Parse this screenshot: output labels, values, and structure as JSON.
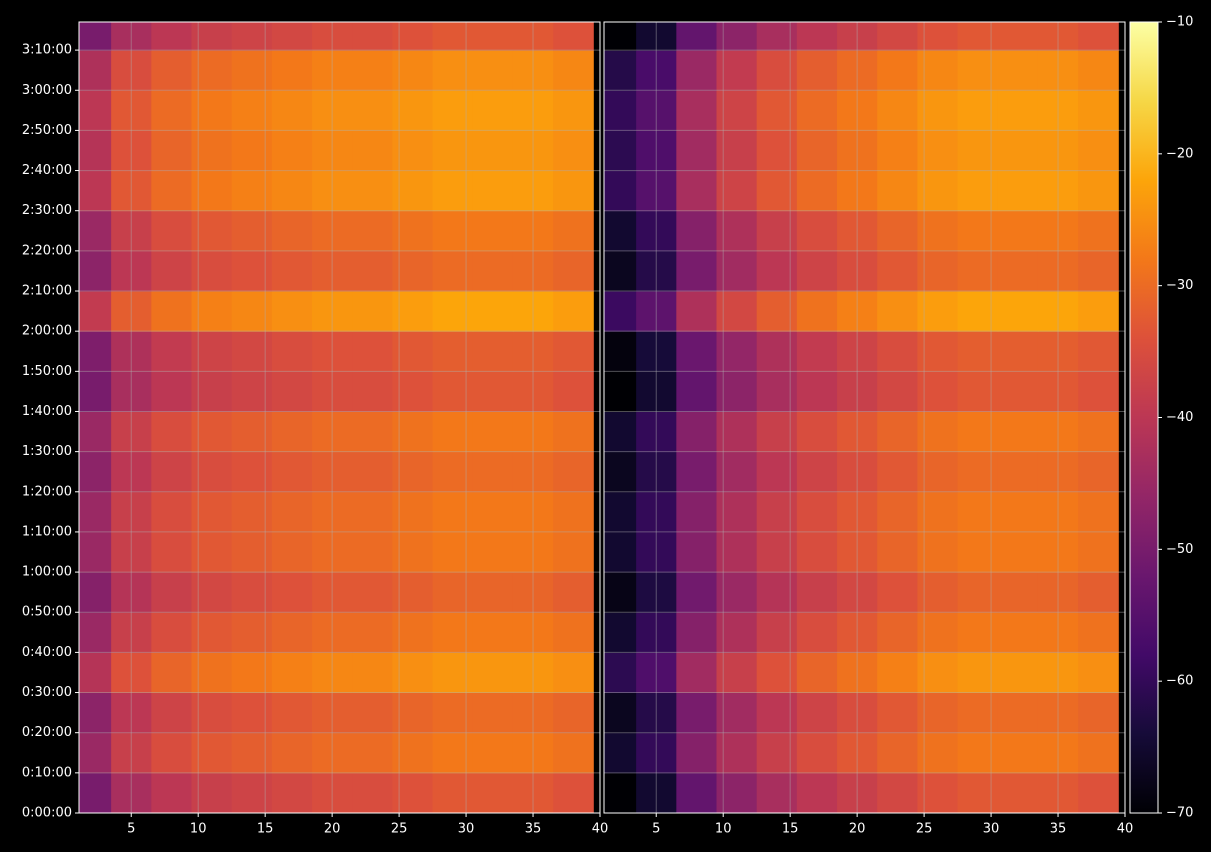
{
  "chart_data": [
    {
      "type": "heatmap",
      "cmap": "inferno",
      "grid": true,
      "x": [
        2,
        5,
        8,
        11,
        14,
        17,
        20,
        23,
        26,
        29,
        32,
        35,
        38
      ],
      "y": [
        300,
        900,
        1500,
        2100,
        2700,
        3300,
        3900,
        4500,
        5100,
        5700,
        6300,
        6900,
        7500,
        8100,
        8700,
        9300,
        9900,
        10500,
        11100,
        11700
      ],
      "values": [
        [
          -50,
          -43,
          -40,
          -38,
          -37,
          -36,
          -35,
          -35,
          -34,
          -33,
          -33,
          -33,
          -34
        ],
        [
          -45,
          -38,
          -35,
          -33,
          -32,
          -31,
          -30,
          -30,
          -29,
          -28,
          -28,
          -28,
          -29
        ],
        [
          -47,
          -40,
          -37,
          -35,
          -34,
          -33,
          -32,
          -32,
          -31,
          -30,
          -30,
          -30,
          -31
        ],
        [
          -41,
          -34,
          -31,
          -29,
          -28,
          -27,
          -26,
          -26,
          -25,
          -24,
          -24,
          -24,
          -25
        ],
        [
          -45,
          -38,
          -35,
          -33,
          -32,
          -31,
          -30,
          -30,
          -29,
          -28,
          -28,
          -28,
          -29
        ],
        [
          -48,
          -41,
          -38,
          -36,
          -35,
          -34,
          -33,
          -33,
          -32,
          -31,
          -31,
          -31,
          -32
        ],
        [
          -45,
          -38,
          -35,
          -33,
          -32,
          -31,
          -30,
          -30,
          -29,
          -28,
          -28,
          -28,
          -29
        ],
        [
          -45,
          -38,
          -35,
          -33,
          -32,
          -31,
          -30,
          -30,
          -29,
          -28,
          -28,
          -28,
          -29
        ],
        [
          -47,
          -40,
          -37,
          -35,
          -34,
          -33,
          -32,
          -32,
          -31,
          -30,
          -30,
          -30,
          -31
        ],
        [
          -45,
          -38,
          -35,
          -33,
          -32,
          -31,
          -30,
          -30,
          -29,
          -28,
          -28,
          -28,
          -29
        ],
        [
          -50,
          -43,
          -40,
          -38,
          -37,
          -36,
          -35,
          -35,
          -34,
          -33,
          -33,
          -33,
          -34
        ],
        [
          -49,
          -42,
          -39,
          -37,
          -36,
          -35,
          -34,
          -34,
          -33,
          -32,
          -32,
          -32,
          -33
        ],
        [
          -39,
          -32,
          -29,
          -27,
          -26,
          -25,
          -24,
          -24,
          -23,
          -22,
          -22,
          -22,
          -23
        ],
        [
          -47,
          -40,
          -37,
          -35,
          -34,
          -33,
          -32,
          -32,
          -31,
          -30,
          -30,
          -30,
          -31
        ],
        [
          -45,
          -38,
          -35,
          -33,
          -32,
          -31,
          -30,
          -30,
          -29,
          -28,
          -28,
          -28,
          -29
        ],
        [
          -40,
          -33,
          -30,
          -28,
          -27,
          -26,
          -25,
          -25,
          -24,
          -23,
          -23,
          -23,
          -24
        ],
        [
          -41,
          -34,
          -31,
          -29,
          -28,
          -27,
          -26,
          -26,
          -25,
          -24,
          -24,
          -24,
          -25
        ],
        [
          -40,
          -33,
          -30,
          -28,
          -27,
          -26,
          -25,
          -25,
          -24,
          -23,
          -23,
          -23,
          -24
        ],
        [
          -42,
          -35,
          -32,
          -30,
          -29,
          -28,
          -27,
          -27,
          -26,
          -25,
          -25,
          -25,
          -26
        ],
        [
          -50,
          -43,
          -40,
          -38,
          -37,
          -36,
          -35,
          -35,
          -34,
          -33,
          -33,
          -33,
          -34
        ]
      ],
      "xlim": [
        1.1,
        40
      ],
      "xticks": [
        5,
        10,
        15,
        20,
        25,
        30,
        35,
        40
      ],
      "ylim": [
        0,
        11820
      ],
      "yticks": [
        {
          "value": 0,
          "label": "0:00:00"
        },
        {
          "value": 600,
          "label": "0:10:00"
        },
        {
          "value": 1200,
          "label": "0:20:00"
        },
        {
          "value": 1800,
          "label": "0:30:00"
        },
        {
          "value": 2400,
          "label": "0:40:00"
        },
        {
          "value": 3000,
          "label": "0:50:00"
        },
        {
          "value": 3600,
          "label": "1:00:00"
        },
        {
          "value": 4200,
          "label": "1:10:00"
        },
        {
          "value": 4800,
          "label": "1:20:00"
        },
        {
          "value": 5400,
          "label": "1:30:00"
        },
        {
          "value": 6000,
          "label": "1:40:00"
        },
        {
          "value": 6600,
          "label": "1:50:00"
        },
        {
          "value": 7200,
          "label": "2:00:00"
        },
        {
          "value": 7800,
          "label": "2:10:00"
        },
        {
          "value": 8400,
          "label": "2:20:00"
        },
        {
          "value": 9000,
          "label": "2:30:00"
        },
        {
          "value": 9600,
          "label": "2:40:00"
        },
        {
          "value": 10200,
          "label": "2:50:00"
        },
        {
          "value": 10800,
          "label": "3:00:00"
        },
        {
          "value": 11400,
          "label": "3:10:00"
        }
      ]
    },
    {
      "type": "heatmap",
      "cmap": "inferno",
      "grid": true,
      "x": [
        2,
        5,
        8,
        11,
        14,
        17,
        20,
        23,
        26,
        29,
        32,
        35,
        38
      ],
      "y": [
        300,
        900,
        1500,
        2100,
        2700,
        3300,
        3900,
        4500,
        5100,
        5700,
        6300,
        6900,
        7500,
        8100,
        8700,
        9300,
        9900,
        10500,
        11100,
        11700
      ],
      "values": [
        [
          -70,
          -65,
          -53,
          -47,
          -43,
          -40,
          -38,
          -36,
          -34,
          -33,
          -33,
          -33,
          -34
        ],
        [
          -65,
          -60,
          -48,
          -42,
          -38,
          -35,
          -33,
          -31,
          -29,
          -28,
          -28,
          -28,
          -29
        ],
        [
          -67,
          -62,
          -50,
          -44,
          -40,
          -37,
          -35,
          -33,
          -31,
          -30,
          -30,
          -30,
          -31
        ],
        [
          -61,
          -56,
          -44,
          -38,
          -34,
          -31,
          -29,
          -27,
          -25,
          -24,
          -24,
          -24,
          -25
        ],
        [
          -65,
          -60,
          -48,
          -42,
          -38,
          -35,
          -33,
          -31,
          -29,
          -28,
          -28,
          -28,
          -29
        ],
        [
          -68,
          -63,
          -51,
          -45,
          -41,
          -38,
          -36,
          -34,
          -32,
          -31,
          -31,
          -31,
          -32
        ],
        [
          -65,
          -60,
          -48,
          -42,
          -38,
          -35,
          -33,
          -31,
          -29,
          -28,
          -28,
          -28,
          -29
        ],
        [
          -65,
          -60,
          -48,
          -42,
          -38,
          -35,
          -33,
          -31,
          -29,
          -28,
          -28,
          -28,
          -29
        ],
        [
          -67,
          -62,
          -50,
          -44,
          -40,
          -37,
          -35,
          -33,
          -31,
          -30,
          -30,
          -30,
          -31
        ],
        [
          -65,
          -60,
          -48,
          -42,
          -38,
          -35,
          -33,
          -31,
          -29,
          -28,
          -28,
          -28,
          -29
        ],
        [
          -70,
          -65,
          -53,
          -47,
          -43,
          -40,
          -38,
          -36,
          -34,
          -33,
          -33,
          -33,
          -34
        ],
        [
          -69,
          -64,
          -52,
          -46,
          -42,
          -39,
          -37,
          -35,
          -33,
          -32,
          -32,
          -32,
          -33
        ],
        [
          -59,
          -54,
          -42,
          -36,
          -32,
          -29,
          -27,
          -25,
          -23,
          -22,
          -22,
          -22,
          -23
        ],
        [
          -67,
          -62,
          -50,
          -44,
          -40,
          -37,
          -35,
          -33,
          -31,
          -30,
          -30,
          -30,
          -31
        ],
        [
          -65,
          -60,
          -48,
          -42,
          -38,
          -35,
          -33,
          -31,
          -29,
          -28,
          -28,
          -28,
          -29
        ],
        [
          -60,
          -55,
          -43,
          -37,
          -33,
          -30,
          -28,
          -26,
          -24,
          -23,
          -23,
          -23,
          -24
        ],
        [
          -61,
          -56,
          -44,
          -38,
          -34,
          -31,
          -29,
          -27,
          -25,
          -24,
          -24,
          -24,
          -25
        ],
        [
          -60,
          -55,
          -43,
          -37,
          -33,
          -30,
          -28,
          -26,
          -24,
          -23,
          -23,
          -23,
          -24
        ],
        [
          -62,
          -57,
          -45,
          -39,
          -35,
          -32,
          -30,
          -28,
          -26,
          -25,
          -25,
          -25,
          -26
        ],
        [
          -70,
          -65,
          -53,
          -47,
          -43,
          -40,
          -38,
          -36,
          -34,
          -33,
          -33,
          -33,
          -34
        ]
      ],
      "xlim": [
        1.1,
        40
      ],
      "xticks": [
        5,
        10,
        15,
        20,
        25,
        30,
        35,
        40
      ],
      "ylim": [
        0,
        11820
      ],
      "colorbar": {
        "clim": [
          -70,
          -10
        ],
        "ticks": [
          {
            "value": -10,
            "label": "−10"
          },
          {
            "value": -20,
            "label": "−20"
          },
          {
            "value": -30,
            "label": "−30"
          },
          {
            "value": -40,
            "label": "−40"
          },
          {
            "value": -50,
            "label": "−50"
          },
          {
            "value": -60,
            "label": "−60"
          },
          {
            "value": -70,
            "label": "−70"
          }
        ]
      }
    }
  ]
}
